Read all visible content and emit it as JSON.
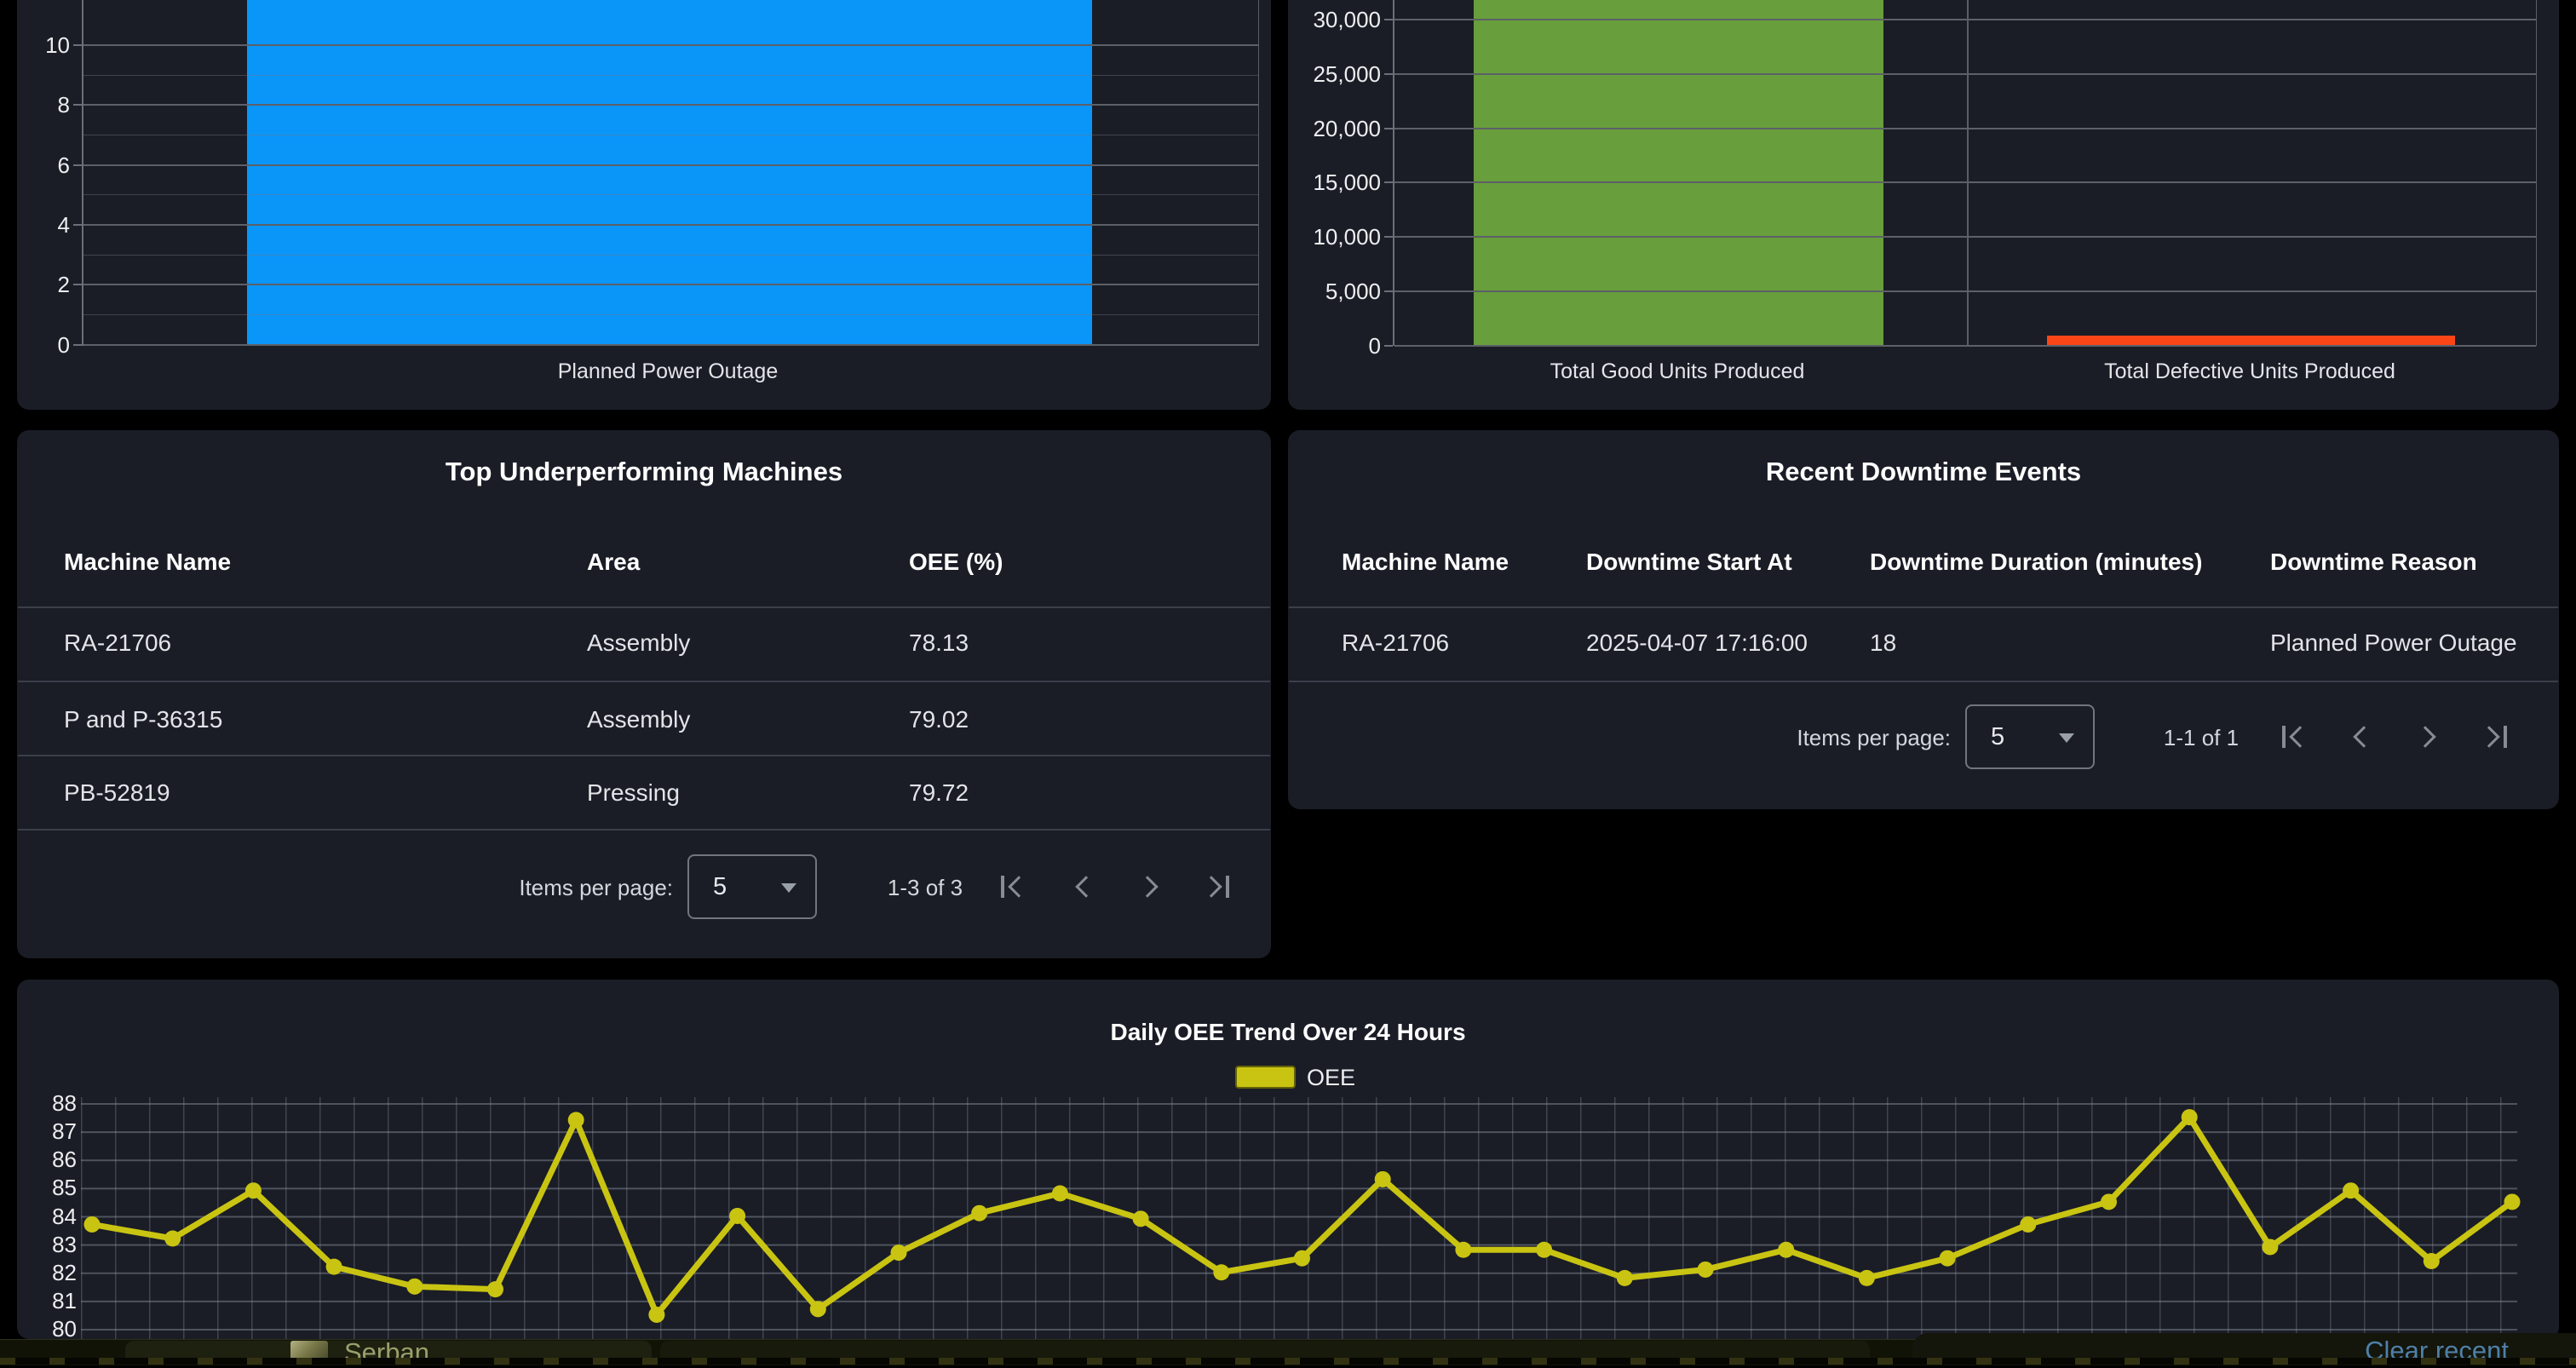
{
  "charts": {
    "downtime_by_reason": {
      "type": "bar",
      "categories": [
        "Planned Power Outage"
      ],
      "values": [
        18
      ],
      "cut_off_at_top": true,
      "yticks": [
        "10",
        "8",
        "6",
        "4",
        "2",
        "0"
      ],
      "ylim_visible": [
        0,
        11.5
      ],
      "bar_color": "#0a96f9"
    },
    "units_produced": {
      "type": "bar",
      "categories": [
        "Total Good Units Produced",
        "Total Defective Units Produced"
      ],
      "values": [
        32000,
        950
      ],
      "cut_off_at_top": true,
      "yticks": [
        "30,000",
        "25,000",
        "20,000",
        "15,000",
        "10,000",
        "5,000",
        "0"
      ],
      "ylim_visible": [
        0,
        32000
      ],
      "bar_colors": [
        "#689e3c",
        "#fb4517"
      ]
    },
    "oee_trend": {
      "type": "line",
      "title": "Daily OEE Trend Over 24 Hours",
      "legend_label": "OEE",
      "line_color": "#c9c412",
      "ylim": [
        80,
        88
      ],
      "yticks": [
        "88",
        "87",
        "86",
        "85",
        "84",
        "83",
        "82",
        "81",
        "80"
      ],
      "series": [
        {
          "name": "OEE",
          "values": [
            83.7,
            83.2,
            84.9,
            82.2,
            81.5,
            81.4,
            87.4,
            80.5,
            84.0,
            80.7,
            82.7,
            84.1,
            84.8,
            83.9,
            82.0,
            82.5,
            85.3,
            82.8,
            82.8,
            81.8,
            82.1,
            82.8,
            81.8,
            82.5,
            83.7,
            84.5,
            87.5,
            82.9,
            84.9,
            82.4,
            84.5
          ]
        }
      ],
      "grid": true,
      "legend_position": "top-center"
    }
  },
  "left_table": {
    "title": "Top Underperforming Machines",
    "columns": [
      "Machine Name",
      "Area",
      "OEE (%)"
    ],
    "rows": [
      [
        "RA-21706",
        "Assembly",
        "78.13"
      ],
      [
        "P and P-36315",
        "Assembly",
        "79.02"
      ],
      [
        "PB-52819",
        "Pressing",
        "79.72"
      ]
    ],
    "paginator": {
      "items_per_page_label": "Items per page:",
      "page_size": "5",
      "range": "1-3 of 3"
    }
  },
  "right_table": {
    "title": "Recent Downtime Events",
    "columns": [
      "Machine Name",
      "Downtime Start At",
      "Downtime Duration (minutes)",
      "Downtime Reason"
    ],
    "rows": [
      [
        "RA-21706",
        "2025-04-07 17:16:00",
        "18",
        "Planned Power Outage"
      ]
    ],
    "paginator": {
      "items_per_page_label": "Items per page:",
      "page_size": "5",
      "range": "1-1 of 1"
    }
  },
  "taskbar": {
    "window_label": "Serban",
    "clear_recent_label": "Clear recent"
  }
}
